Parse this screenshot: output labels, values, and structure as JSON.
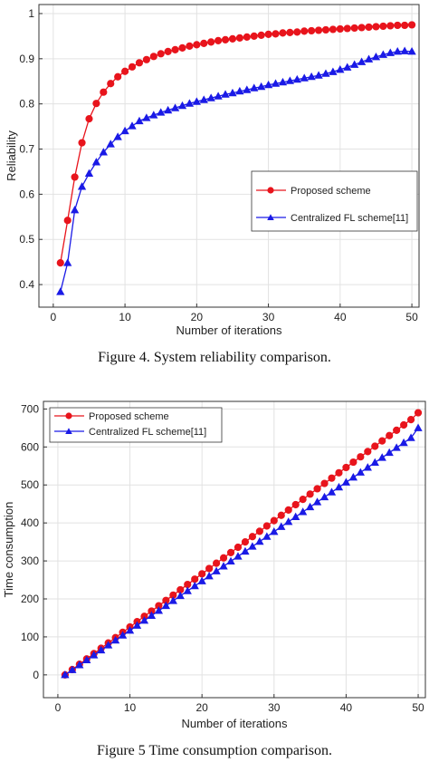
{
  "captions": {
    "fig4": "Figure 4. System reliability comparison.",
    "fig5": "Figure 5 Time consumption comparison."
  },
  "colors": {
    "proposed": "#e8141c",
    "centralized": "#1a1ae6",
    "grid": "#e2e2e2",
    "axis": "#333333"
  },
  "chart_data": [
    {
      "type": "line",
      "title": "",
      "xlabel": "Number of iterations",
      "ylabel": "Reliability",
      "xlim": [
        -2,
        51
      ],
      "ylim": [
        0.35,
        1.02
      ],
      "xticks": [
        0,
        10,
        20,
        30,
        40,
        50
      ],
      "yticks": [
        0.4,
        0.5,
        0.6,
        0.7,
        0.8,
        0.9,
        1
      ],
      "ytick_labels": [
        "0.4",
        "0.5",
        "0.6",
        "0.7",
        "0.8",
        "0.9",
        "1"
      ],
      "grid": true,
      "legend_position": "center-right",
      "x": [
        1,
        2,
        3,
        4,
        5,
        6,
        7,
        8,
        9,
        10,
        11,
        12,
        13,
        14,
        15,
        16,
        17,
        18,
        19,
        20,
        21,
        22,
        23,
        24,
        25,
        26,
        27,
        28,
        29,
        30,
        31,
        32,
        33,
        34,
        35,
        36,
        37,
        38,
        39,
        40,
        41,
        42,
        43,
        44,
        45,
        46,
        47,
        48,
        49,
        50
      ],
      "series": [
        {
          "name": "Proposed scheme",
          "marker": "circle",
          "values": [
            0.448,
            0.542,
            0.638,
            0.714,
            0.767,
            0.801,
            0.826,
            0.845,
            0.86,
            0.872,
            0.882,
            0.891,
            0.898,
            0.905,
            0.911,
            0.916,
            0.92,
            0.924,
            0.928,
            0.931,
            0.934,
            0.937,
            0.94,
            0.942,
            0.944,
            0.946,
            0.948,
            0.95,
            0.952,
            0.954,
            0.955,
            0.957,
            0.958,
            0.959,
            0.961,
            0.962,
            0.963,
            0.964,
            0.965,
            0.966,
            0.967,
            0.968,
            0.969,
            0.97,
            0.971,
            0.972,
            0.973,
            0.974,
            0.974,
            0.975
          ]
        },
        {
          "name": "Centralized FL scheme[11]",
          "marker": "triangle",
          "values": [
            0.384,
            0.448,
            0.565,
            0.617,
            0.646,
            0.671,
            0.693,
            0.711,
            0.727,
            0.74,
            0.751,
            0.762,
            0.769,
            0.775,
            0.781,
            0.786,
            0.791,
            0.796,
            0.801,
            0.805,
            0.809,
            0.813,
            0.817,
            0.821,
            0.824,
            0.828,
            0.831,
            0.835,
            0.838,
            0.842,
            0.845,
            0.848,
            0.851,
            0.854,
            0.857,
            0.86,
            0.863,
            0.867,
            0.871,
            0.876,
            0.881,
            0.887,
            0.893,
            0.899,
            0.904,
            0.909,
            0.913,
            0.916,
            0.917,
            0.916
          ]
        }
      ]
    },
    {
      "type": "line",
      "title": "",
      "xlabel": "Number of iterations",
      "ylabel": "Time consumption",
      "xlim": [
        -2,
        51
      ],
      "ylim": [
        -60,
        720
      ],
      "xticks": [
        0,
        10,
        20,
        30,
        40,
        50
      ],
      "yticks": [
        0,
        100,
        200,
        300,
        400,
        500,
        600,
        700
      ],
      "ytick_labels": [
        "0",
        "100",
        "200",
        "300",
        "400",
        "500",
        "600",
        "700"
      ],
      "grid": true,
      "legend_position": "top-left",
      "x": [
        1,
        2,
        3,
        4,
        5,
        6,
        7,
        8,
        9,
        10,
        11,
        12,
        13,
        14,
        15,
        16,
        17,
        18,
        19,
        20,
        21,
        22,
        23,
        24,
        25,
        26,
        27,
        28,
        29,
        30,
        31,
        32,
        33,
        34,
        35,
        36,
        37,
        38,
        39,
        40,
        41,
        42,
        43,
        44,
        45,
        46,
        47,
        48,
        49,
        50
      ],
      "series": [
        {
          "name": "Proposed scheme",
          "marker": "circle",
          "values": [
            0,
            14,
            28,
            42,
            56,
            70,
            84,
            98,
            112,
            126,
            140,
            154,
            168,
            182,
            196,
            210,
            224,
            238,
            252,
            266,
            280,
            294,
            308,
            322,
            336,
            350,
            364,
            378,
            392,
            406,
            420,
            434,
            448,
            462,
            476,
            490,
            504,
            518,
            532,
            546,
            560,
            574,
            588,
            602,
            616,
            630,
            644,
            658,
            672,
            690
          ]
        },
        {
          "name": "Centralized FL scheme[11]",
          "marker": "triangle",
          "values": [
            0,
            13,
            26,
            39,
            52,
            65,
            78,
            91,
            104,
            117,
            130,
            143,
            156,
            169,
            182,
            195,
            208,
            221,
            234,
            247,
            260,
            273,
            286,
            299,
            312,
            325,
            338,
            351,
            364,
            377,
            390,
            403,
            416,
            429,
            442,
            455,
            468,
            481,
            494,
            507,
            520,
            533,
            546,
            559,
            572,
            585,
            598,
            611,
            624,
            650
          ]
        }
      ]
    }
  ]
}
